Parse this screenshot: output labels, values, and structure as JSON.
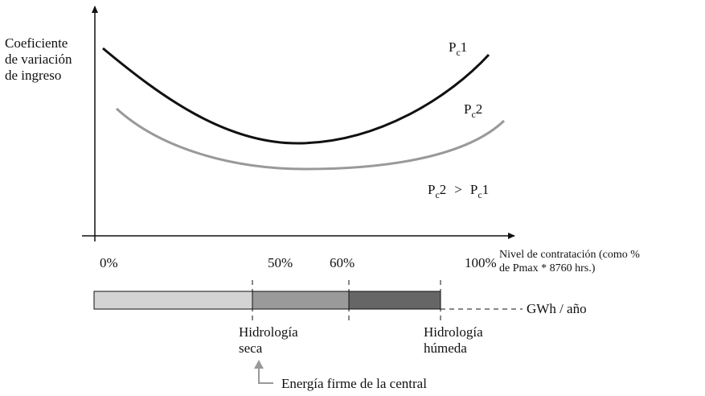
{
  "y_axis_label": [
    "Coeficiente",
    "de variación",
    "de ingreso"
  ],
  "curves": [
    {
      "label": {
        "base": "P",
        "sub": "c",
        "suffix": "1"
      }
    },
    {
      "label": {
        "base": "P",
        "sub": "c",
        "suffix": "2"
      }
    }
  ],
  "comparison": {
    "left": {
      "base": "P",
      "sub": "c",
      "suffix": "2"
    },
    "operator": ">",
    "right": {
      "base": "P",
      "sub": "c",
      "suffix": "1"
    }
  },
  "x_axis_label": [
    "Nivel de contratación (como %",
    "de Pmax * 8760 hrs.)"
  ],
  "ticks": [
    "0%",
    "50%",
    "60%",
    "100%"
  ],
  "bar_label": "GWh / año",
  "markers": [
    {
      "lines": [
        "Hidrología",
        "seca"
      ]
    },
    {
      "lines": [
        "Hidrología",
        "húmeda"
      ]
    }
  ],
  "note": "Energía firme de la central"
}
